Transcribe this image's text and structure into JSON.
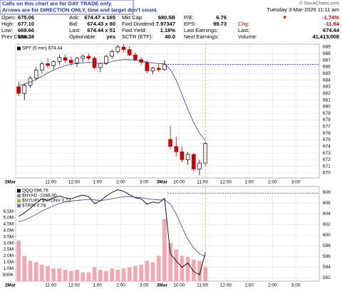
{
  "header": {
    "notice": [
      "Calls on this chart are for DAY TRADE only.",
      "Arrows are for DIRECTION ONLY, time and target don't count."
    ],
    "brand": "© StockCharts.com",
    "date": "Tuesday  3-Mar-2026  11:11 am",
    "columns": [
      [
        [
          "Open:",
          "675.06"
        ],
        [
          "High:",
          "677.10"
        ],
        [
          "Low:",
          "669.66"
        ],
        [
          "Prev Close:",
          "686.38"
        ]
      ],
      [
        [
          "Ask:",
          "674.47 x 165"
        ],
        [
          "Bid:",
          "674.43 x 80"
        ],
        [
          "Last:",
          "674.44 x 51"
        ],
        [
          "Optionable:",
          "yes"
        ]
      ],
      [
        [
          "Mkt Cap:",
          "680.5B"
        ],
        [
          "Fwd Dividend:",
          "7.97347"
        ],
        [
          "Fwd Yield:",
          "1.18%"
        ],
        [
          "SCTR (ETF):",
          "40.0"
        ]
      ],
      [
        [
          "P/E:",
          "6.76"
        ],
        [
          "EPS:",
          "99.73"
        ],
        [
          "Last Earnings:"
        ],
        [
          "Next Earnings:"
        ]
      ],
      [
        [
          "▼",
          "-1.74%"
        ],
        [
          "Chg:",
          "-11.94"
        ],
        [
          "Last:",
          "674.44"
        ],
        [
          "Volume:",
          "41,413,008"
        ]
      ]
    ]
  },
  "chart_data": [
    {
      "type": "candlestick",
      "legend": "SPY (5 min) 674.44",
      "categories": [
        "2Mar",
        null,
        null,
        null,
        null,
        null,
        "11:00",
        null,
        null,
        null,
        "12:00",
        null,
        null,
        null,
        "1:00",
        null,
        null,
        null,
        "2:00",
        null,
        null,
        null,
        "3:00",
        null,
        null,
        null,
        "3Mar",
        null,
        "10:00",
        null,
        null,
        null,
        "11:00",
        null,
        null,
        null,
        "12:00",
        null,
        null,
        null,
        "1:00",
        null,
        null,
        null,
        "2:00",
        null,
        null,
        null,
        "3:00",
        null,
        null,
        null
      ],
      "open": [
        683.0,
        682.0,
        683.2,
        684.3,
        685.5,
        686.5,
        686.2,
        686.8,
        687.4,
        687.0,
        686.6,
        687.3,
        687.6,
        687.3,
        685.9,
        686.5,
        687.6,
        688.3,
        689.0,
        688.6,
        687.8,
        687.1,
        686.7,
        685.4,
        685.8,
        685.6,
        675.06,
        674.0,
        673.2,
        672.0,
        672.8,
        670.6,
        671.5,
        null,
        null,
        null,
        null,
        null,
        null,
        null,
        null,
        null,
        null,
        null,
        null,
        null,
        null,
        null,
        null,
        null,
        null,
        null
      ],
      "high": [
        683.8,
        683.5,
        684.6,
        685.9,
        686.8,
        687.3,
        687.0,
        687.8,
        687.9,
        687.6,
        687.5,
        687.9,
        688.0,
        687.6,
        686.7,
        687.8,
        688.6,
        689.3,
        689.4,
        689.1,
        688.2,
        687.5,
        687.0,
        686.0,
        686.4,
        687.0,
        677.1,
        675.5,
        674.0,
        673.2,
        673.0,
        672.0,
        674.8,
        null,
        null,
        null,
        null,
        null,
        null,
        null,
        null,
        null,
        null,
        null,
        null,
        null,
        null,
        null,
        null,
        null,
        null,
        null
      ],
      "low": [
        681.6,
        681.0,
        682.8,
        684.0,
        685.0,
        685.8,
        685.6,
        686.3,
        686.6,
        686.2,
        686.0,
        686.7,
        687.0,
        685.6,
        685.2,
        686.3,
        687.2,
        688.0,
        688.2,
        687.6,
        686.9,
        686.3,
        685.0,
        684.9,
        685.2,
        685.4,
        673.6,
        672.5,
        671.6,
        671.2,
        670.2,
        669.66,
        671.0,
        null,
        null,
        null,
        null,
        null,
        null,
        null,
        null,
        null,
        null,
        null,
        null,
        null,
        null,
        null,
        null,
        null,
        null,
        null
      ],
      "close": [
        682.0,
        683.2,
        684.3,
        685.5,
        686.5,
        686.2,
        686.8,
        687.4,
        687.0,
        686.6,
        687.3,
        687.6,
        687.3,
        685.9,
        686.5,
        687.6,
        688.3,
        689.0,
        688.6,
        687.8,
        687.1,
        686.7,
        685.4,
        685.8,
        685.6,
        686.4,
        674.0,
        673.2,
        672.0,
        672.8,
        670.6,
        671.5,
        674.44,
        null,
        null,
        null,
        null,
        null,
        null,
        null,
        null,
        null,
        null,
        null,
        null,
        null,
        null,
        null,
        null,
        null,
        null,
        null
      ],
      "up_color": "#000000",
      "down_color": "#cc0000",
      "series": [
        {
          "color": "#3a3a9e",
          "values": [
            683.2,
            683.4,
            683.7,
            684.1,
            684.6,
            685.1,
            685.5,
            685.9,
            686.2,
            686.4,
            686.5,
            686.6,
            686.7,
            686.6,
            686.5,
            686.6,
            686.8,
            687.0,
            687.1,
            687.1,
            687.0,
            686.9,
            686.7,
            686.6,
            686.5,
            686.5,
            685.6,
            684.0,
            681.8,
            679.6,
            677.6,
            676.0,
            674.9,
            null,
            null,
            null,
            null,
            null,
            null,
            null,
            null,
            null,
            null,
            null,
            null,
            null,
            null,
            null,
            null,
            null,
            null,
            null
          ]
        }
      ],
      "reference_line": 686.38,
      "reference_color": "#3333cc",
      "ylim": [
        669.25,
        689.43
      ],
      "yticks": [
        670,
        671,
        672,
        673,
        674,
        675,
        676,
        677,
        678,
        679,
        680,
        681,
        682,
        683,
        684,
        685,
        686,
        687,
        688,
        689
      ],
      "grid": true
    },
    {
      "type": "line",
      "categories": [
        "2Mar",
        null,
        null,
        null,
        null,
        null,
        "11:00",
        null,
        null,
        null,
        "12:00",
        null,
        null,
        null,
        "1:00",
        null,
        null,
        null,
        "2:00",
        null,
        null,
        null,
        "3:00",
        null,
        null,
        null,
        "3Mar",
        null,
        "10:00",
        null,
        null,
        null,
        "11:00",
        null,
        null,
        null,
        "12:00",
        null,
        null,
        null,
        "1:00",
        null,
        null,
        null,
        "2:00",
        null,
        null,
        null,
        "3:00",
        null,
        null,
        null
      ],
      "series": [
        {
          "name": "QQQ 596.78",
          "color": "#000000",
          "values": [
            603.5,
            604.2,
            605.0,
            606.0,
            606.8,
            606.5,
            607.0,
            607.3,
            607.0,
            606.8,
            607.2,
            607.5,
            607.2,
            605.9,
            606.4,
            607.3,
            608.0,
            608.5,
            608.2,
            607.6,
            607.0,
            606.8,
            605.8,
            606.2,
            606.0,
            606.9,
            596.5,
            595.2,
            594.0,
            594.8,
            593.2,
            592.6,
            596.78,
            null,
            null,
            null,
            null,
            null,
            null,
            null,
            null,
            null,
            null,
            null,
            null,
            null,
            null,
            null,
            null,
            null,
            null,
            null
          ]
        },
        {
          "color": "#3a3a9e",
          "values": [
            602.5,
            602.8,
            603.3,
            603.9,
            604.5,
            605.0,
            605.5,
            605.9,
            606.2,
            606.4,
            606.5,
            606.6,
            606.7,
            606.6,
            606.5,
            606.6,
            606.8,
            607.0,
            607.2,
            607.2,
            607.1,
            607.0,
            606.8,
            606.7,
            606.6,
            606.6,
            605.8,
            604.0,
            601.5,
            599.2,
            597.6,
            596.5,
            596.0,
            null,
            null,
            null,
            null,
            null,
            null,
            null,
            null,
            null,
            null,
            null,
            null,
            null,
            null,
            null,
            null,
            null,
            null,
            null
          ]
        },
        {
          "color": "#f0a9b3",
          "axis": "y2",
          "values": [
            3200000,
            2000000,
            1600000,
            1500000,
            1300000,
            1200000,
            1000000,
            1000000,
            900000,
            800000,
            900000,
            700000,
            700000,
            1100000,
            900000,
            800000,
            1000000,
            900000,
            1000000,
            1100000,
            1200000,
            1300000,
            1600000,
            1500000,
            2000000,
            4900000,
            3000000,
            2500000,
            2000000,
            1900000,
            1700000,
            1600000,
            1100000,
            null,
            null,
            null,
            null,
            null,
            null,
            null,
            null,
            null,
            null,
            null,
            null,
            null,
            null,
            null,
            null,
            null,
            null,
            null
          ]
        }
      ],
      "legend_extra": [
        {
          "text": "$NYAD -2266.00",
          "color": "#8c8c8c"
        },
        {
          "text": "$NYUPV:$NYDNV 0.12",
          "color": "#c8a040"
        },
        {
          "text": "$TRIN 0.78",
          "color": "#7070c0"
        }
      ],
      "reference_line": 607.8,
      "reference_color": "#3333cc",
      "ylim": [
        591.4,
        609.1
      ],
      "yticks": [
        592,
        594,
        596,
        598,
        600,
        602,
        604,
        606,
        608
      ],
      "y2lim": [
        0,
        7470000
      ],
      "y2ticks": [
        {
          "value": 500000,
          "label": "500K"
        },
        {
          "value": 1000000,
          "label": "1.0M"
        },
        {
          "value": 1500000,
          "label": "1.5M"
        },
        {
          "value": 2000000,
          "label": "2.0M"
        },
        {
          "value": 2500000,
          "label": "2.5M"
        },
        {
          "value": 3000000,
          "label": "3.0M"
        },
        {
          "value": 3500000,
          "label": "3.5M"
        },
        {
          "value": 4000000,
          "label": "4.0M"
        },
        {
          "value": 4500000,
          "label": "4.5M"
        },
        {
          "value": 5000000,
          "label": "5.0M"
        },
        {
          "value": 5500000,
          "label": "5.5M"
        }
      ],
      "grid": true
    }
  ]
}
